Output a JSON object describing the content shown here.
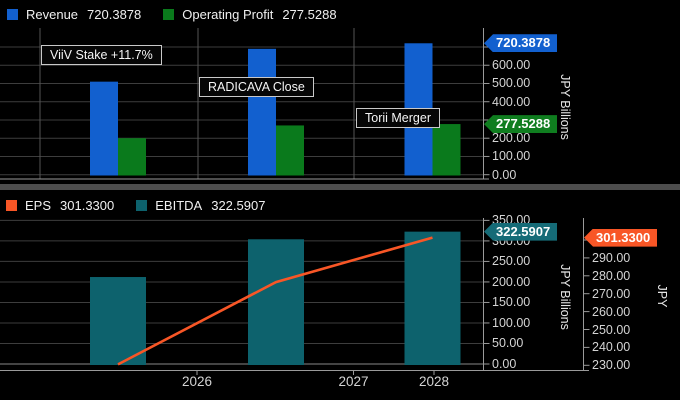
{
  "colors": {
    "background": "#000000",
    "revenue_blue": "#1260cf",
    "operating_profit_green": "#0a7a1c",
    "ebitda_teal": "#0d626d",
    "eps_orange": "#f85626",
    "badge_green": "#0f7d1f",
    "badge_teal": "#156b77",
    "grid_h": "#3d3d3d",
    "grid_v": "#545454",
    "axis_line": "#9a9a9a"
  },
  "chart_data": [
    {
      "type": "bar",
      "panel": "top",
      "categories": [
        "2026",
        "2027",
        "2028"
      ],
      "series": [
        {
          "name": "Revenue",
          "color": "#1260cf",
          "values": [
            510,
            690,
            720.3878
          ]
        },
        {
          "name": "Operating Profit",
          "color": "#0a7a1c",
          "values": [
            200,
            270,
            277.5288
          ]
        }
      ],
      "legend": [
        {
          "label": "Revenue",
          "value": "720.3878",
          "color": "#1260cf"
        },
        {
          "label": "Operating Profit",
          "value": "277.5288",
          "color": "#0a7a1c"
        }
      ],
      "ylabel": "JPY Billions",
      "ylim": [
        0,
        700
      ],
      "ytick_step": 100,
      "ytick_labels": [
        "0.00",
        "100.00",
        "200.00",
        "400.00",
        "500.00",
        "600.00"
      ],
      "badges": [
        {
          "text": "720.3878",
          "value": 720.3878,
          "color": "#1260cf"
        },
        {
          "text": "277.5288",
          "value": 277.5288,
          "color": "#0f7d1f"
        }
      ],
      "annotations": [
        "ViiV Stake +11.7%",
        "RADICAVA Close",
        "Torii Merger"
      ],
      "grid": "horizontal+vertical",
      "legend_position": "top-left",
      "axis_side": "right"
    },
    {
      "type": "bar+line",
      "panel": "bottom",
      "categories": [
        "2026",
        "2027",
        "2028"
      ],
      "series": [
        {
          "name": "EBITDA",
          "kind": "bar",
          "color": "#0d626d",
          "axis": "JPY Billions",
          "values": [
            212,
            304,
            322.5907
          ]
        },
        {
          "name": "EPS",
          "kind": "line",
          "color": "#f85626",
          "axis": "JPY",
          "values": [
            230.5,
            276.5,
            301.33
          ]
        }
      ],
      "legend": [
        {
          "label": "EPS",
          "value": "301.3300",
          "color": "#f85626"
        },
        {
          "label": "EBITDA",
          "value": "322.5907",
          "color": "#0d626d"
        }
      ],
      "axes": [
        {
          "label": "JPY Billions",
          "ylim": [
            0,
            350
          ],
          "tick_step": 50,
          "tick_labels": [
            "0.00",
            "50.00",
            "100.00",
            "150.00",
            "200.00",
            "250.00",
            "300.00",
            "350.00"
          ]
        },
        {
          "label": "JPY",
          "ylim": [
            230,
            300
          ],
          "tick_step": 10,
          "tick_labels": [
            "230.00",
            "240.00",
            "250.00",
            "260.00",
            "270.00",
            "280.00",
            "290.00"
          ]
        }
      ],
      "badges": [
        {
          "text": "322.5907",
          "value": 322.5907,
          "color": "#156b77",
          "axis": 0
        },
        {
          "text": "301.3300",
          "value": 301.33,
          "color": "#f85626",
          "axis": 1
        }
      ],
      "xtick_labels": [
        "2026",
        "2027",
        "2028"
      ],
      "grid": "horizontal",
      "legend_position": "top-left",
      "axis_side": "right"
    }
  ]
}
